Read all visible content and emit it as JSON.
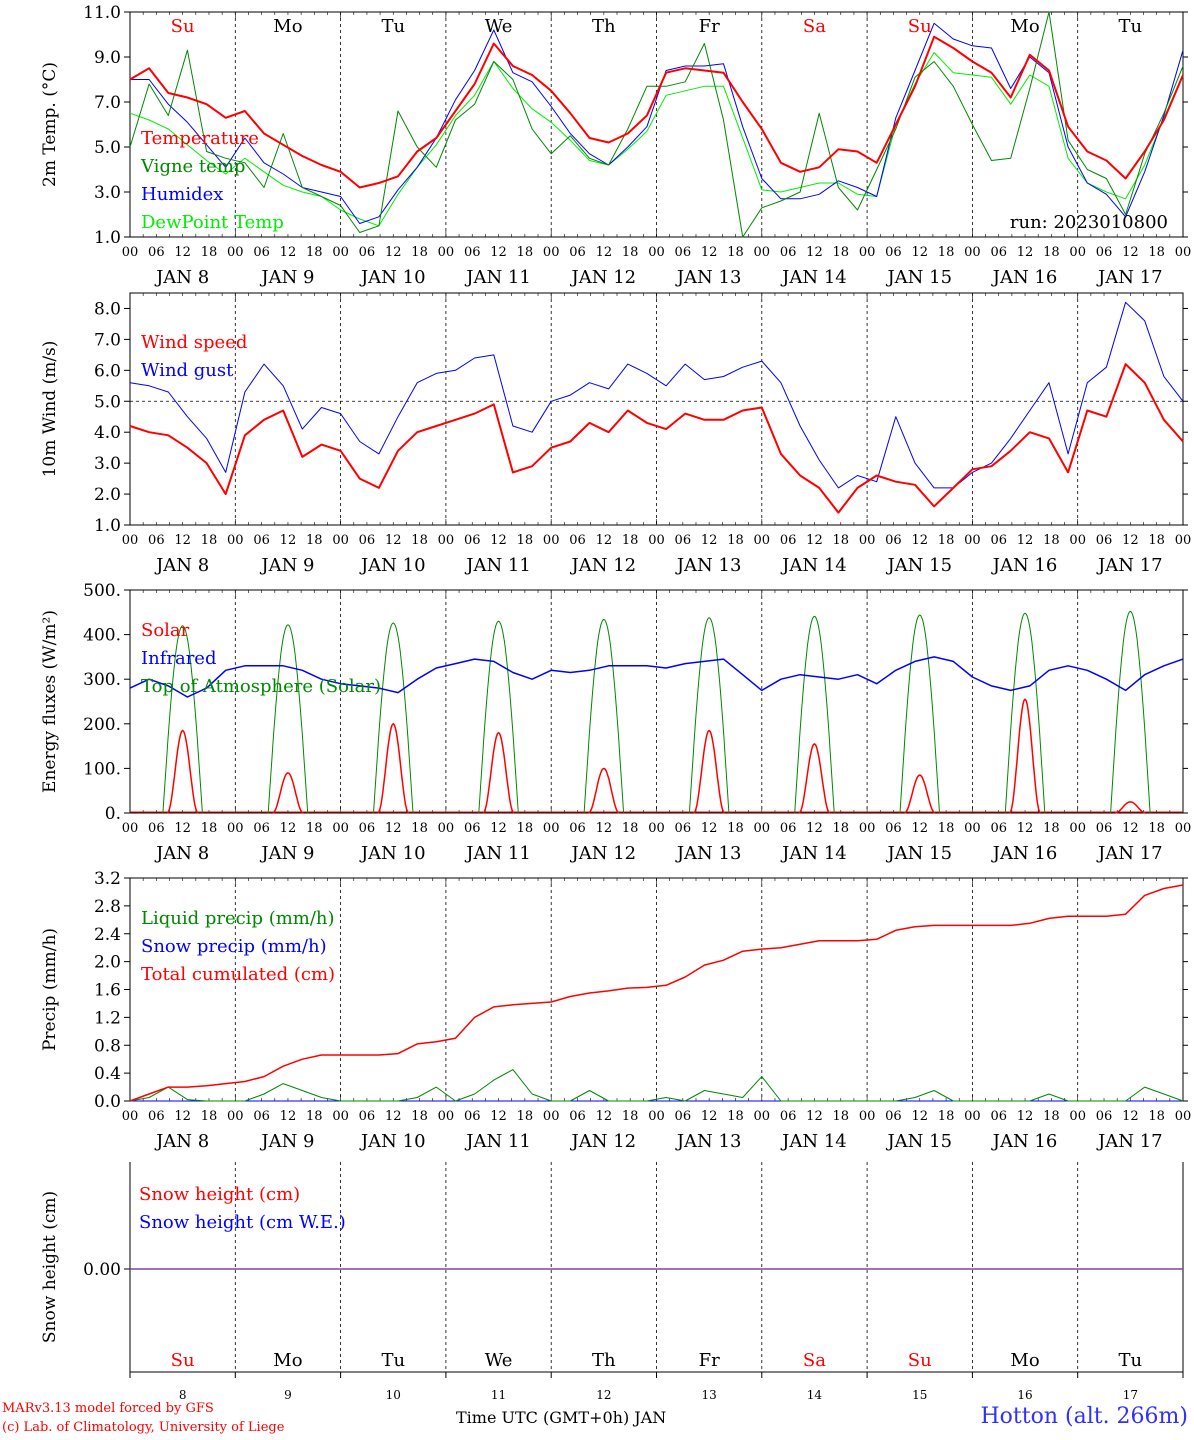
{
  "chart_data": [
    {
      "type": "line",
      "id": "temperature",
      "ylabel": "2m Temp. (°C)",
      "ylim": [
        1.0,
        11.0
      ],
      "yticks": [
        "1.0",
        "3.0",
        "5.0",
        "7.0",
        "9.0",
        "11.0"
      ],
      "run_label": "run: 2023010800",
      "day_labels": [
        {
          "text": "Su",
          "color": "#ff0000"
        },
        {
          "text": "Mo",
          "color": "#000000"
        },
        {
          "text": "Tu",
          "color": "#000000"
        },
        {
          "text": "We",
          "color": "#000000"
        },
        {
          "text": "Th",
          "color": "#000000"
        },
        {
          "text": "Fr",
          "color": "#000000"
        },
        {
          "text": "Sa",
          "color": "#ff0000"
        },
        {
          "text": "Su",
          "color": "#ff0000"
        },
        {
          "text": "Mo",
          "color": "#000000"
        },
        {
          "text": "Tu",
          "color": "#000000"
        }
      ],
      "series": [
        {
          "name": "Temperature",
          "color": "#ff0000",
          "width": 2,
          "values": [
            8.0,
            8.5,
            7.4,
            7.2,
            6.9,
            6.3,
            6.6,
            5.6,
            5.1,
            4.6,
            4.2,
            3.9,
            3.2,
            3.4,
            3.7,
            4.8,
            5.4,
            6.6,
            7.8,
            9.6,
            8.6,
            8.2,
            7.5,
            6.5,
            5.4,
            5.2,
            5.6,
            6.4,
            8.3,
            8.5,
            8.4,
            8.3,
            7.0,
            5.8,
            4.3,
            3.9,
            4.1,
            4.9,
            4.8,
            4.3,
            6.0,
            7.7,
            9.9,
            9.4,
            8.8,
            8.3,
            7.2,
            9.1,
            8.4,
            5.9,
            4.8,
            4.4,
            3.6,
            4.8,
            6.2,
            8.2
          ]
        },
        {
          "name": "Vigne temp",
          "color": "#008800",
          "width": 1,
          "values": [
            5.0,
            7.8,
            6.4,
            9.3,
            4.8,
            4.5,
            4.3,
            3.2,
            5.6,
            3.2,
            2.8,
            2.4,
            1.2,
            1.5,
            6.6,
            5.0,
            4.1,
            6.2,
            6.9,
            8.8,
            8.0,
            5.8,
            4.7,
            5.5,
            4.5,
            4.2,
            5.8,
            7.7,
            7.7,
            7.9,
            9.6,
            6.2,
            1.0,
            2.3,
            2.6,
            3.0,
            6.5,
            3.2,
            2.2,
            4.0,
            5.8,
            8.1,
            8.8,
            7.7,
            6.0,
            4.4,
            4.5,
            7.6,
            11.0,
            5.3,
            4.0,
            3.6,
            2.0,
            4.7,
            6.5,
            8.6
          ]
        },
        {
          "name": "Humidex",
          "color": "#0000ff",
          "width": 1,
          "values": [
            8.0,
            8.0,
            6.9,
            6.1,
            5.1,
            4.1,
            5.4,
            4.3,
            3.8,
            3.2,
            3.0,
            2.8,
            1.6,
            1.9,
            3.1,
            4.1,
            5.4,
            7.1,
            8.4,
            10.2,
            8.3,
            7.9,
            6.8,
            5.6,
            4.7,
            4.2,
            5.0,
            5.9,
            8.4,
            8.6,
            8.6,
            8.7,
            5.9,
            3.6,
            2.7,
            2.7,
            2.9,
            3.5,
            3.2,
            2.8,
            6.3,
            8.4,
            10.5,
            9.8,
            9.5,
            9.4,
            7.6,
            9.0,
            8.3,
            5.0,
            3.4,
            2.9,
            1.9,
            3.9,
            6.4,
            9.3
          ]
        },
        {
          "name": "DewPoint Temp",
          "color": "#00ee00",
          "width": 1,
          "values": [
            6.5,
            6.2,
            5.8,
            5.1,
            4.4,
            3.8,
            4.5,
            3.9,
            3.3,
            3.0,
            2.8,
            2.2,
            1.8,
            1.5,
            2.9,
            4.1,
            5.1,
            6.4,
            7.3,
            8.8,
            7.6,
            6.7,
            6.1,
            5.3,
            4.4,
            4.2,
            4.9,
            5.7,
            7.3,
            7.5,
            7.7,
            7.7,
            5.4,
            3.1,
            3.0,
            3.2,
            3.4,
            3.4,
            2.9,
            2.8,
            6.0,
            7.8,
            9.2,
            8.3,
            8.2,
            8.1,
            6.9,
            8.2,
            7.7,
            4.5,
            3.4,
            3.0,
            2.7,
            4.2,
            6.3,
            8.2
          ]
        }
      ]
    },
    {
      "type": "line",
      "id": "wind",
      "ylabel": "10m Wind (m/s)",
      "ylim": [
        1.0,
        8.5
      ],
      "yticks": [
        "1.0",
        "2.0",
        "3.0",
        "4.0",
        "5.0",
        "6.0",
        "7.0",
        "8.0"
      ],
      "refline": 5.0,
      "series": [
        {
          "name": "Wind speed",
          "color": "#ff0000",
          "width": 2,
          "values": [
            4.2,
            4.0,
            3.9,
            3.5,
            3.0,
            2.0,
            3.9,
            4.4,
            4.7,
            3.2,
            3.6,
            3.4,
            2.5,
            2.2,
            3.4,
            4.0,
            4.2,
            4.4,
            4.6,
            4.9,
            2.7,
            2.9,
            3.5,
            3.7,
            4.3,
            4.0,
            4.7,
            4.3,
            4.1,
            4.6,
            4.4,
            4.4,
            4.7,
            4.8,
            3.3,
            2.6,
            2.2,
            1.4,
            2.2,
            2.6,
            2.4,
            2.3,
            1.6,
            2.2,
            2.8,
            2.9,
            3.4,
            4.0,
            3.8,
            2.7,
            4.7,
            4.5,
            6.2,
            5.6,
            4.4,
            3.7
          ]
        },
        {
          "name": "Wind gust",
          "color": "#0000ff",
          "width": 1,
          "values": [
            5.6,
            5.5,
            5.3,
            4.5,
            3.8,
            2.7,
            5.3,
            6.2,
            5.5,
            4.1,
            4.8,
            4.6,
            3.7,
            3.3,
            4.5,
            5.6,
            5.9,
            6.0,
            6.4,
            6.5,
            4.2,
            4.0,
            5.0,
            5.2,
            5.6,
            5.4,
            6.2,
            5.9,
            5.5,
            6.2,
            5.7,
            5.8,
            6.1,
            6.3,
            5.6,
            4.2,
            3.1,
            2.2,
            2.6,
            2.4,
            4.5,
            3.0,
            2.2,
            2.2,
            2.7,
            3.0,
            3.8,
            4.7,
            5.6,
            3.3,
            5.6,
            6.1,
            8.2,
            7.6,
            5.8,
            5.0
          ]
        }
      ]
    },
    {
      "type": "line",
      "id": "energy",
      "ylabel": "Energy fluxes (W/m²)",
      "ylim": [
        0,
        500
      ],
      "yticks": [
        "0.",
        "100.",
        "200.",
        "300.",
        "400.",
        "500."
      ],
      "toa_peaks": [
        420,
        422,
        426,
        430,
        434,
        438,
        441,
        444,
        448,
        452
      ],
      "solar_peaks": [
        185,
        90,
        200,
        180,
        100,
        185,
        155,
        85,
        255,
        25
      ],
      "series": [
        {
          "name": "Solar",
          "color": "#ff0000",
          "width": 1.5
        },
        {
          "name": "Infrared",
          "color": "#0000ff",
          "width": 1.5,
          "values": [
            280,
            300,
            285,
            260,
            280,
            320,
            330,
            330,
            330,
            320,
            300,
            290,
            285,
            280,
            270,
            300,
            325,
            335,
            345,
            340,
            315,
            300,
            320,
            315,
            320,
            330,
            330,
            330,
            325,
            335,
            340,
            345,
            310,
            275,
            300,
            310,
            305,
            300,
            310,
            290,
            320,
            340,
            350,
            340,
            305,
            285,
            275,
            285,
            320,
            330,
            320,
            300,
            275,
            310,
            330,
            345
          ]
        },
        {
          "name": "Top of Atmosphere (Solar)",
          "color": "#008800",
          "width": 1
        }
      ]
    },
    {
      "type": "line",
      "id": "precip",
      "ylabel": "Precip (mm/h)",
      "ylim": [
        0,
        3.2
      ],
      "yticks": [
        "0.0",
        "0.4",
        "0.8",
        "1.2",
        "1.6",
        "2.0",
        "2.4",
        "2.8",
        "3.2"
      ],
      "series": [
        {
          "name": "Liquid precip (mm/h)",
          "color": "#008800",
          "width": 1,
          "values": [
            0,
            0.05,
            0.2,
            0.02,
            0,
            0,
            0,
            0.1,
            0.25,
            0.15,
            0.05,
            0,
            0,
            0,
            0,
            0.05,
            0.2,
            0,
            0.1,
            0.3,
            0.45,
            0.1,
            0,
            0,
            0.15,
            0,
            0,
            0,
            0.05,
            0,
            0.15,
            0.1,
            0.05,
            0.35,
            0,
            0,
            0,
            0,
            0,
            0,
            0,
            0.05,
            0.15,
            0,
            0,
            0,
            0,
            0,
            0.1,
            0,
            0,
            0,
            0,
            0.2,
            0.1,
            0
          ]
        },
        {
          "name": "Snow precip (mm/h)",
          "color": "#0000ff",
          "width": 1,
          "values": [
            0,
            0,
            0,
            0,
            0,
            0,
            0,
            0,
            0,
            0,
            0,
            0,
            0,
            0,
            0,
            0,
            0,
            0,
            0,
            0,
            0,
            0,
            0,
            0,
            0,
            0,
            0,
            0,
            0,
            0,
            0,
            0,
            0,
            0,
            0,
            0,
            0,
            0,
            0,
            0,
            0,
            0,
            0,
            0,
            0,
            0,
            0,
            0,
            0,
            0,
            0,
            0,
            0,
            0,
            0,
            0
          ]
        },
        {
          "name": "Total cumulated (cm)",
          "color": "#ff0000",
          "width": 1.5,
          "values": [
            0,
            0.1,
            0.2,
            0.2,
            0.22,
            0.25,
            0.28,
            0.35,
            0.5,
            0.6,
            0.66,
            0.66,
            0.66,
            0.66,
            0.68,
            0.82,
            0.85,
            0.9,
            1.2,
            1.35,
            1.38,
            1.4,
            1.42,
            1.5,
            1.55,
            1.58,
            1.62,
            1.63,
            1.66,
            1.78,
            1.95,
            2.02,
            2.15,
            2.18,
            2.2,
            2.25,
            2.3,
            2.3,
            2.3,
            2.32,
            2.45,
            2.5,
            2.52,
            2.52,
            2.52,
            2.52,
            2.52,
            2.55,
            2.62,
            2.65,
            2.65,
            2.65,
            2.68,
            2.95,
            3.05,
            3.1
          ]
        }
      ]
    },
    {
      "type": "line",
      "id": "snow",
      "ylabel": "Snow height (cm)",
      "yticks": [
        "0.00"
      ],
      "series": [
        {
          "name": "Snow height (cm)",
          "color": "#ff0000"
        },
        {
          "name": "Snow height (cm W.E.)",
          "color": "#0000ff"
        }
      ],
      "line_color": "#8040a0"
    }
  ],
  "x_axis": {
    "hour_ticks": [
      "00",
      "06",
      "12",
      "18"
    ],
    "end_tick": "00",
    "dates": [
      "JAN 8",
      "JAN 9",
      "JAN 10",
      "JAN 11",
      "JAN 12",
      "JAN 13",
      "JAN 14",
      "JAN 15",
      "JAN 16",
      "JAN 17"
    ],
    "day_numbers": [
      "8",
      "9",
      "10",
      "11",
      "12",
      "13",
      "14",
      "15",
      "16",
      "17"
    ],
    "title": "Time UTC (GMT+0h) JAN"
  },
  "footer": {
    "credit_line1": "MARv3.13 model forced by GFS",
    "credit_line2": "(c) Lab. of Climatology, University of Liege",
    "location": "Hotton (alt. 266m)"
  }
}
